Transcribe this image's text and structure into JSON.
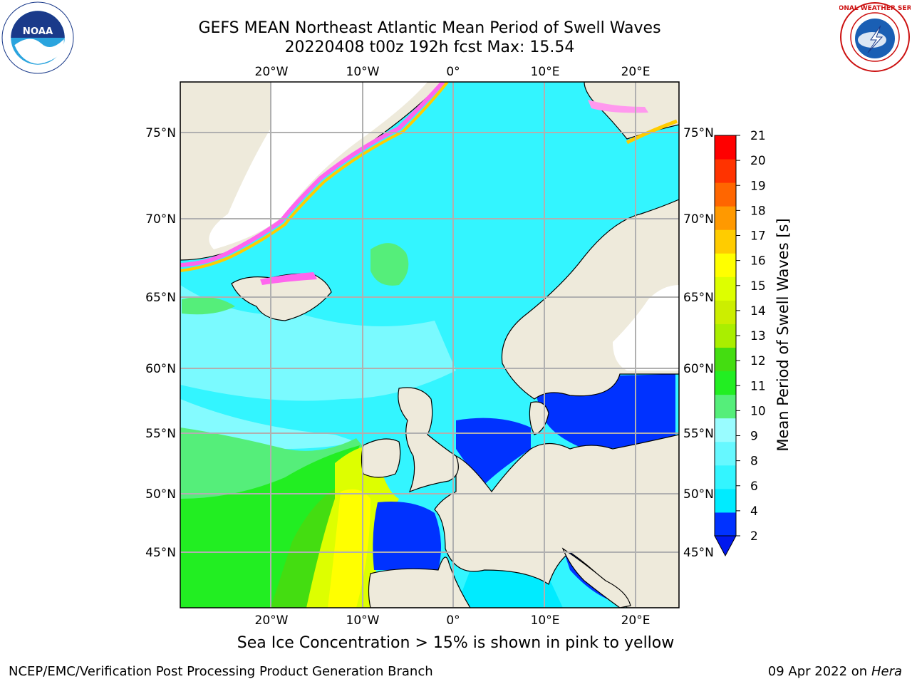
{
  "header": {
    "title_line1": "GEFS MEAN Northeast Atlantic Mean Period of Swell Waves",
    "title_line2": "20220408 t00z 192h fcst   Max: 15.54"
  },
  "logos": {
    "left": "noaa-logo",
    "right": "national-weather-service-logo",
    "left_text": "NOAA",
    "right_text": "NATIONAL WEATHER SERVICE"
  },
  "map": {
    "lon_labels": [
      "20°W",
      "10°W",
      "0°",
      "10°E",
      "20°E"
    ],
    "lat_labels": [
      "75°N",
      "70°N",
      "65°N",
      "60°N",
      "55°N",
      "50°N",
      "45°N"
    ],
    "colors": {
      "land": "#eeeadb",
      "ocean_mid": "#33f5ff",
      "gridline": "#b0b0b0"
    }
  },
  "colorbar": {
    "label": "Mean Period of Swell Waves [s]",
    "ticks": [
      "2",
      "4",
      "6",
      "8",
      "9",
      "10",
      "11",
      "12",
      "13",
      "14",
      "15",
      "16",
      "17",
      "18",
      "19",
      "20",
      "21"
    ],
    "colors": [
      "#0032ff",
      "#00ebff",
      "#33f5ff",
      "#66f8ff",
      "#99fcff",
      "#55ee7a",
      "#22ee22",
      "#44dd11",
      "#aaee00",
      "#ccee00",
      "#ddff00",
      "#ffff00",
      "#ffcc00",
      "#ff9900",
      "#ff6600",
      "#ff3300",
      "#ff0000"
    ],
    "extend_color": "#0018ee"
  },
  "footer": {
    "note": "Sea Ice Concentration > 15% is shown in pink to yellow",
    "left": "NCEP/EMC/Verification Post Processing Product Generation Branch",
    "date": "09 Apr 2022 on",
    "machine": "Hera"
  }
}
